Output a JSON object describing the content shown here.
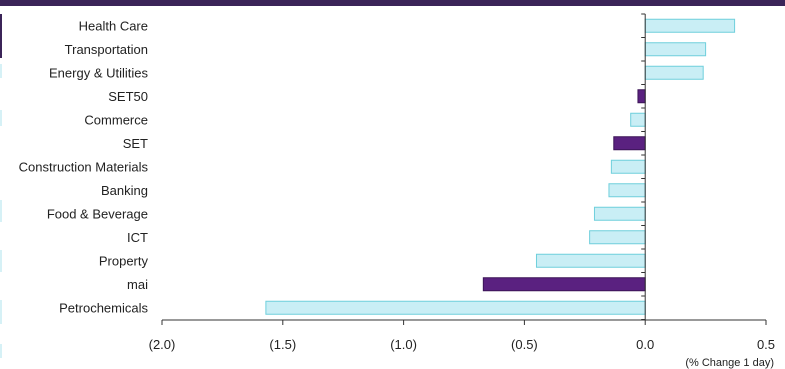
{
  "chart_data": {
    "type": "bar",
    "orientation": "horizontal",
    "categories": [
      "Health Care",
      "Transportation",
      "Energy & Utilities",
      "SET50",
      "Commerce",
      "SET",
      "Construction Materials",
      "Banking",
      "Food & Beverage",
      "ICT",
      "Property",
      "mai",
      "Petrochemicals"
    ],
    "values": [
      0.37,
      0.25,
      0.24,
      -0.03,
      -0.06,
      -0.13,
      -0.14,
      -0.15,
      -0.21,
      -0.23,
      -0.45,
      -0.67,
      -1.57
    ],
    "highlight": [
      "SET50",
      "SET",
      "mai"
    ],
    "xlim": [
      -2.0,
      0.5
    ],
    "ticks": [
      -2.0,
      -1.5,
      -1.0,
      -0.5,
      0.0,
      0.5
    ],
    "tick_labels": [
      "(2.0)",
      "(1.5)",
      "(1.0)",
      "(0.5)",
      "0.0",
      "0.5"
    ],
    "xlabel": "(% Change 1 day)",
    "grid": false,
    "colors": {
      "bar": "#c9eef5",
      "bar_edge": "#6fcfdc",
      "highlight": "#5a2180",
      "highlight_edge": "#3b1457",
      "axis": "#333333",
      "topbar": "#3b2458"
    }
  }
}
